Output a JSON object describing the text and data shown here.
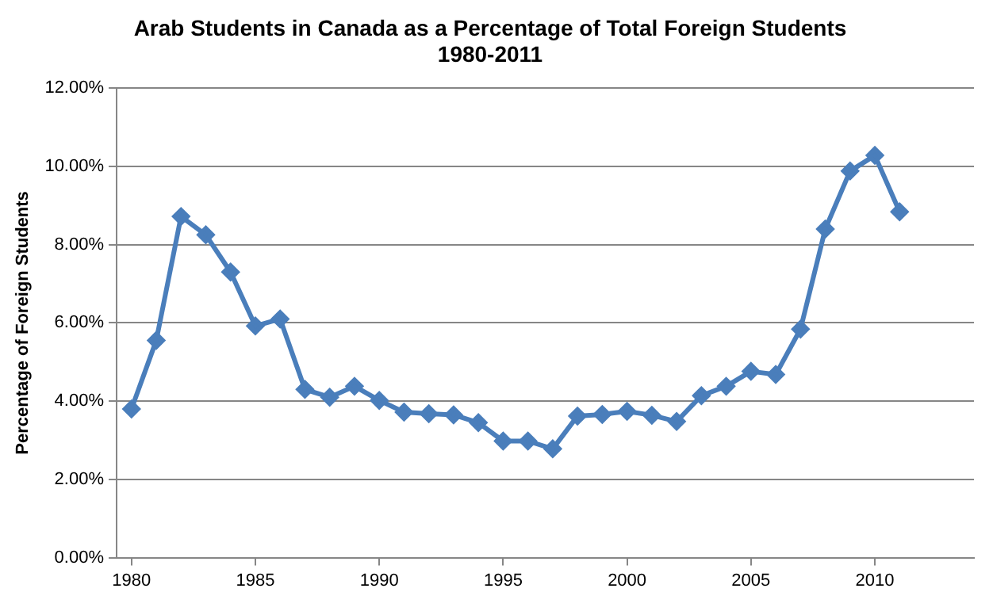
{
  "chart_data": {
    "type": "line",
    "title": "Arab Students in Canada as a Percentage of Total Foreign Students\n1980-2011",
    "ylabel": "Percentage of Foreign Students",
    "x": [
      1980,
      1981,
      1982,
      1983,
      1984,
      1985,
      1986,
      1987,
      1988,
      1989,
      1990,
      1991,
      1992,
      1993,
      1994,
      1995,
      1996,
      1997,
      1998,
      1999,
      2000,
      2001,
      2002,
      2003,
      2004,
      2005,
      2006,
      2007,
      2008,
      2009,
      2010,
      2011
    ],
    "series": [
      {
        "color": "#4a7ebb",
        "values": [
          3.8,
          5.55,
          8.72,
          8.25,
          7.3,
          5.92,
          6.1,
          4.3,
          4.1,
          4.38,
          4.02,
          3.72,
          3.68,
          3.65,
          3.45,
          2.98,
          2.98,
          2.78,
          3.62,
          3.66,
          3.74,
          3.64,
          3.48,
          4.14,
          4.38,
          4.76,
          4.68,
          5.84,
          8.4,
          9.88,
          10.28,
          8.84
        ]
      }
    ],
    "xlim": [
      1979.4,
      2014
    ],
    "xticks": [
      1980,
      1985,
      1990,
      1995,
      2000,
      2005,
      2010
    ],
    "ylim": [
      0,
      12
    ],
    "yticks": [
      {
        "value": 0,
        "label": "0.00%"
      },
      {
        "value": 2,
        "label": "2.00%"
      },
      {
        "value": 4,
        "label": "4.00%"
      },
      {
        "value": 6,
        "label": "6.00%"
      },
      {
        "value": 8,
        "label": "8.00%"
      },
      {
        "value": 10,
        "label": "10.00%"
      },
      {
        "value": 12,
        "label": "12.00%"
      }
    ],
    "grid": "y",
    "legend": false,
    "marker": "diamond",
    "line_style": "solid"
  }
}
